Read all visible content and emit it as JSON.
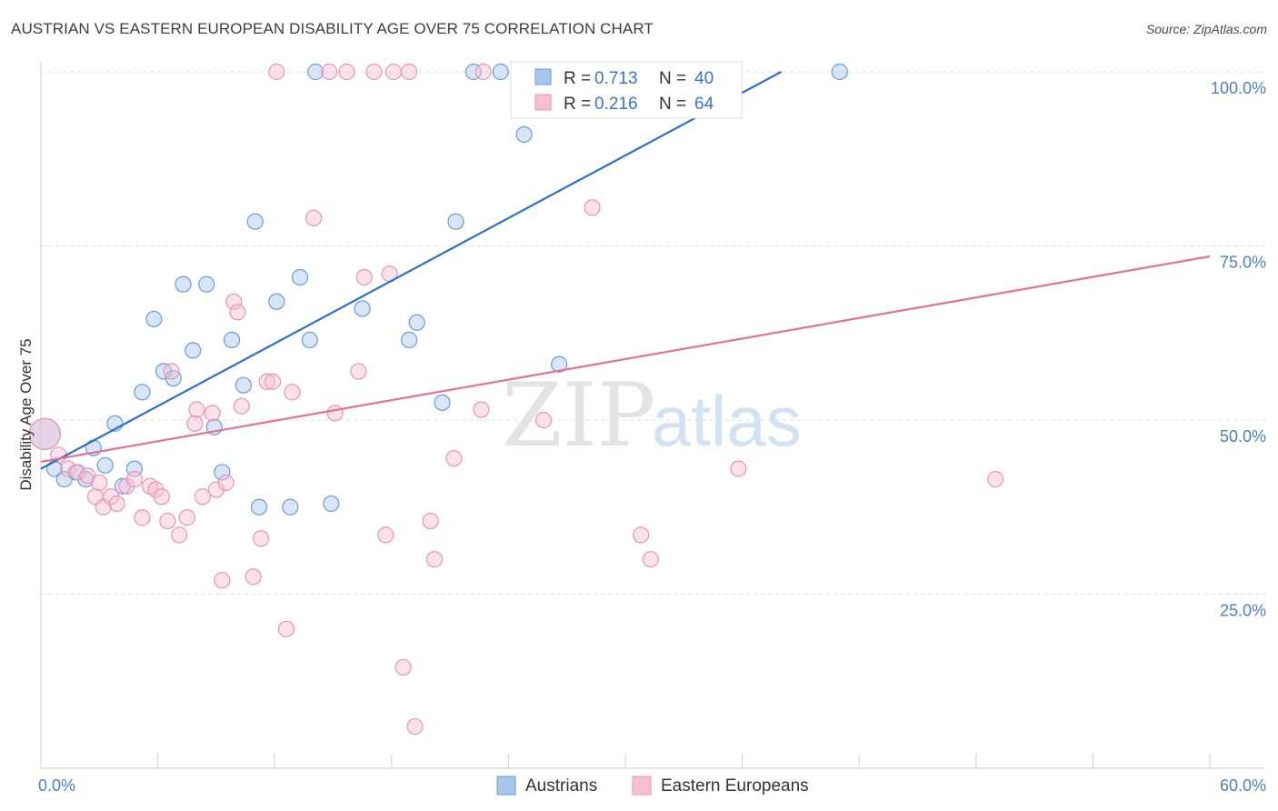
{
  "header": {
    "title": "AUSTRIAN VS EASTERN EUROPEAN DISABILITY AGE OVER 75 CORRELATION CHART",
    "source": "Source: ZipAtlas.com"
  },
  "watermark": {
    "zip": "ZIP",
    "atlas": "atlas"
  },
  "legend": {
    "r_label": "R =",
    "n_label": "N =",
    "entries": [
      {
        "r": "0.713",
        "n": "40",
        "color": "#a7c6ee",
        "stroke": "#6b9bd8"
      },
      {
        "r": "0.216",
        "n": "64",
        "color": "#f7bfd0",
        "stroke": "#e895b0"
      }
    ]
  },
  "bottom_legend": [
    {
      "label": "Austrians",
      "color": "#a7c6ee",
      "stroke": "#6b9bd8"
    },
    {
      "label": "Eastern Europeans",
      "color": "#f7bfd0",
      "stroke": "#e895b0"
    }
  ],
  "chart_data": {
    "type": "scatter",
    "title": "AUSTRIAN VS EASTERN EUROPEAN DISABILITY AGE OVER 75 CORRELATION CHART",
    "xlabel": "",
    "ylabel": "Disability Age Over 75",
    "xlim": [
      0,
      60
    ],
    "ylim": [
      0,
      105
    ],
    "x_tick_labels": [
      "0.0%",
      "60.0%"
    ],
    "y_ticks": [
      25,
      50,
      75,
      100
    ],
    "y_tick_labels": [
      "25.0%",
      "50.0%",
      "75.0%",
      "100.0%"
    ],
    "grid": true,
    "legend_position": "top-center",
    "series": [
      {
        "name": "Austrians",
        "color": "#a7c6ee",
        "stroke": "#6b9bd8",
        "line_color": "#2f6fcc",
        "trend": {
          "x": [
            0,
            38
          ],
          "y": [
            43.0,
            100.0
          ]
        },
        "points": [
          {
            "x": 0.2,
            "y": 48,
            "big": true
          },
          {
            "x": 0.7,
            "y": 43
          },
          {
            "x": 1.2,
            "y": 41.5
          },
          {
            "x": 1.8,
            "y": 42.5
          },
          {
            "x": 2.3,
            "y": 41.5
          },
          {
            "x": 2.7,
            "y": 46
          },
          {
            "x": 3.3,
            "y": 43.5
          },
          {
            "x": 3.8,
            "y": 49.5
          },
          {
            "x": 4.2,
            "y": 40.5
          },
          {
            "x": 4.8,
            "y": 43
          },
          {
            "x": 5.2,
            "y": 54
          },
          {
            "x": 5.8,
            "y": 64.5
          },
          {
            "x": 6.3,
            "y": 57
          },
          {
            "x": 6.8,
            "y": 56
          },
          {
            "x": 7.3,
            "y": 69.5
          },
          {
            "x": 7.8,
            "y": 60
          },
          {
            "x": 8.5,
            "y": 69.5
          },
          {
            "x": 8.9,
            "y": 49
          },
          {
            "x": 9.3,
            "y": 42.5
          },
          {
            "x": 9.8,
            "y": 61.5
          },
          {
            "x": 10.4,
            "y": 55
          },
          {
            "x": 11.0,
            "y": 78.5
          },
          {
            "x": 11.2,
            "y": 37.5
          },
          {
            "x": 12.1,
            "y": 67
          },
          {
            "x": 12.8,
            "y": 37.5
          },
          {
            "x": 13.3,
            "y": 70.5
          },
          {
            "x": 13.8,
            "y": 61.5
          },
          {
            "x": 14.1,
            "y": 100
          },
          {
            "x": 14.9,
            "y": 38
          },
          {
            "x": 16.5,
            "y": 66
          },
          {
            "x": 18.9,
            "y": 61.5
          },
          {
            "x": 19.3,
            "y": 64
          },
          {
            "x": 20.6,
            "y": 52.5
          },
          {
            "x": 21.3,
            "y": 78.5
          },
          {
            "x": 22.2,
            "y": 100
          },
          {
            "x": 23.6,
            "y": 100
          },
          {
            "x": 24.8,
            "y": 91
          },
          {
            "x": 26.6,
            "y": 58
          },
          {
            "x": 33.5,
            "y": 100
          },
          {
            "x": 41.0,
            "y": 100
          }
        ]
      },
      {
        "name": "Eastern Europeans",
        "color": "#f7bfd0",
        "stroke": "#e895b0",
        "line_color": "#e2709a",
        "trend": {
          "x": [
            0,
            60
          ],
          "y": [
            44.0,
            73.5
          ]
        },
        "points": [
          {
            "x": 0.2,
            "y": 48,
            "big": true
          },
          {
            "x": 0.9,
            "y": 45
          },
          {
            "x": 1.4,
            "y": 43
          },
          {
            "x": 1.9,
            "y": 42.5
          },
          {
            "x": 2.4,
            "y": 42
          },
          {
            "x": 2.8,
            "y": 39
          },
          {
            "x": 3.2,
            "y": 37.5
          },
          {
            "x": 3.6,
            "y": 39
          },
          {
            "x": 3.9,
            "y": 38
          },
          {
            "x": 4.4,
            "y": 40.5
          },
          {
            "x": 4.8,
            "y": 41.5
          },
          {
            "x": 5.2,
            "y": 36
          },
          {
            "x": 5.6,
            "y": 40.5
          },
          {
            "x": 5.9,
            "y": 40
          },
          {
            "x": 6.2,
            "y": 39
          },
          {
            "x": 6.5,
            "y": 35.5
          },
          {
            "x": 6.7,
            "y": 57
          },
          {
            "x": 7.1,
            "y": 33.5
          },
          {
            "x": 7.5,
            "y": 36
          },
          {
            "x": 7.9,
            "y": 49.5
          },
          {
            "x": 8.0,
            "y": 51.5
          },
          {
            "x": 8.3,
            "y": 39
          },
          {
            "x": 8.8,
            "y": 51
          },
          {
            "x": 9.0,
            "y": 40
          },
          {
            "x": 9.3,
            "y": 27
          },
          {
            "x": 9.5,
            "y": 41
          },
          {
            "x": 9.9,
            "y": 67
          },
          {
            "x": 10.1,
            "y": 65.5
          },
          {
            "x": 10.3,
            "y": 52
          },
          {
            "x": 10.9,
            "y": 27.5
          },
          {
            "x": 11.3,
            "y": 33
          },
          {
            "x": 11.6,
            "y": 55.5
          },
          {
            "x": 11.9,
            "y": 55.5
          },
          {
            "x": 12.1,
            "y": 100
          },
          {
            "x": 12.6,
            "y": 20
          },
          {
            "x": 12.9,
            "y": 54
          },
          {
            "x": 14.0,
            "y": 79
          },
          {
            "x": 14.8,
            "y": 100
          },
          {
            "x": 15.1,
            "y": 51
          },
          {
            "x": 15.7,
            "y": 100
          },
          {
            "x": 16.3,
            "y": 57
          },
          {
            "x": 16.6,
            "y": 70.5
          },
          {
            "x": 17.1,
            "y": 100
          },
          {
            "x": 17.7,
            "y": 33.5
          },
          {
            "x": 17.9,
            "y": 71
          },
          {
            "x": 18.1,
            "y": 100
          },
          {
            "x": 18.6,
            "y": 14.5
          },
          {
            "x": 18.9,
            "y": 100
          },
          {
            "x": 19.2,
            "y": 6
          },
          {
            "x": 20.0,
            "y": 35.5
          },
          {
            "x": 20.2,
            "y": 30
          },
          {
            "x": 21.2,
            "y": 44.5
          },
          {
            "x": 22.6,
            "y": 51.5
          },
          {
            "x": 22.7,
            "y": 100
          },
          {
            "x": 25.8,
            "y": 50
          },
          {
            "x": 27.0,
            "y": 100
          },
          {
            "x": 28.3,
            "y": 80.5
          },
          {
            "x": 30.8,
            "y": 33.5
          },
          {
            "x": 31.3,
            "y": 30
          },
          {
            "x": 32.1,
            "y": 100
          },
          {
            "x": 33.5,
            "y": 100
          },
          {
            "x": 35.8,
            "y": 43
          },
          {
            "x": 49.0,
            "y": 41.5
          },
          {
            "x": 3.0,
            "y": 41
          }
        ]
      }
    ]
  }
}
